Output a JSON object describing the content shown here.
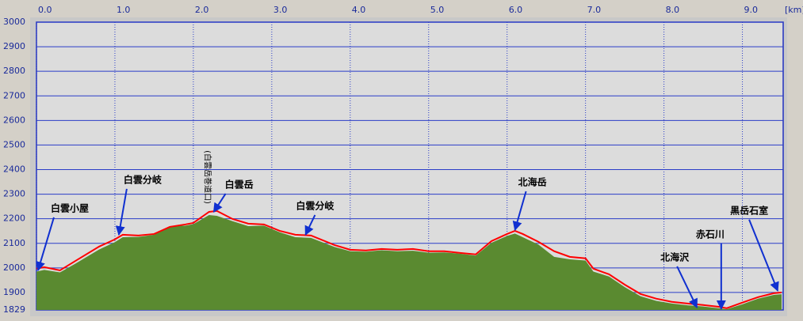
{
  "chart_data": {
    "type": "elevation-profile",
    "xlabel": "[km]",
    "xlim": [
      0,
      9.52
    ],
    "ylim": [
      1829,
      3000
    ],
    "xticks": [
      {
        "value": 0,
        "label": "0.0"
      },
      {
        "value": 1,
        "label": "1.0"
      },
      {
        "value": 2,
        "label": "2.0"
      },
      {
        "value": 3,
        "label": "3.0"
      },
      {
        "value": 4,
        "label": "4.0"
      },
      {
        "value": 5,
        "label": "5.0"
      },
      {
        "value": 6,
        "label": "6.0"
      },
      {
        "value": 7,
        "label": "7.0"
      },
      {
        "value": 8,
        "label": "8.0"
      },
      {
        "value": 9,
        "label": "9.0"
      }
    ],
    "yticks": [
      1829,
      1900,
      2000,
      2100,
      2200,
      2300,
      2400,
      2500,
      2600,
      2700,
      2800,
      2900,
      3000
    ],
    "grid": true,
    "x": [
      0,
      0.1,
      0.3,
      0.5,
      0.8,
      1.0,
      1.1,
      1.3,
      1.5,
      1.7,
      1.9,
      2.0,
      2.2,
      2.3,
      2.5,
      2.7,
      2.9,
      3.1,
      3.3,
      3.5,
      3.8,
      4.0,
      4.2,
      4.4,
      4.6,
      4.8,
      5.0,
      5.2,
      5.4,
      5.6,
      5.8,
      6.0,
      6.1,
      6.2,
      6.4,
      6.6,
      6.8,
      7.0,
      7.1,
      7.3,
      7.5,
      7.7,
      7.9,
      8.1,
      8.3,
      8.5,
      8.7,
      8.8,
      9.0,
      9.2,
      9.4,
      9.5
    ],
    "series": [
      {
        "kind": "area",
        "color": "#5a8a30",
        "values": [
          1985,
          1992,
          1982,
          2018,
          2075,
          2105,
          2125,
          2126,
          2135,
          2170,
          2172,
          2178,
          2215,
          2212,
          2190,
          2170,
          2172,
          2145,
          2125,
          2122,
          2085,
          2068,
          2066,
          2072,
          2068,
          2070,
          2062,
          2063,
          2058,
          2050,
          2102,
          2130,
          2140,
          2125,
          2095,
          2045,
          2035,
          2030,
          1985,
          1965,
          1922,
          1885,
          1866,
          1855,
          1848,
          1843,
          1836,
          1832,
          1852,
          1875,
          1890,
          1893
        ]
      },
      {
        "kind": "line",
        "color": "#ff0000",
        "values": [
          1997,
          2003,
          1990,
          2029,
          2087,
          2116,
          2135,
          2132,
          2138,
          2167,
          2177,
          2183,
          2228,
          2232,
          2199,
          2180,
          2177,
          2151,
          2135,
          2132,
          2093,
          2074,
          2071,
          2077,
          2074,
          2077,
          2068,
          2068,
          2061,
          2055,
          2109,
          2138,
          2151,
          2138,
          2106,
          2068,
          2045,
          2039,
          1997,
          1974,
          1932,
          1894,
          1875,
          1862,
          1855,
          1849,
          1842,
          1836,
          1859,
          1881,
          1897,
          1900
        ]
      }
    ],
    "annotations": [
      {
        "text": "白雲小屋",
        "x": 0.02,
        "y": 1990
      },
      {
        "text": "白雲分岐",
        "x": 1.05,
        "y": 2135
      },
      {
        "text": "白雲岳",
        "x": 2.26,
        "y": 2228,
        "note": "(白雲岳巻道口)"
      },
      {
        "text": "白雲分岐",
        "x": 3.43,
        "y": 2135
      },
      {
        "text": "北海岳",
        "x": 6.1,
        "y": 2154
      },
      {
        "text": "北海沢",
        "x": 8.42,
        "y": 1839
      },
      {
        "text": "赤石川",
        "x": 8.73,
        "y": 1833
      },
      {
        "text": "黒岳石室",
        "x": 9.45,
        "y": 1907
      }
    ]
  }
}
